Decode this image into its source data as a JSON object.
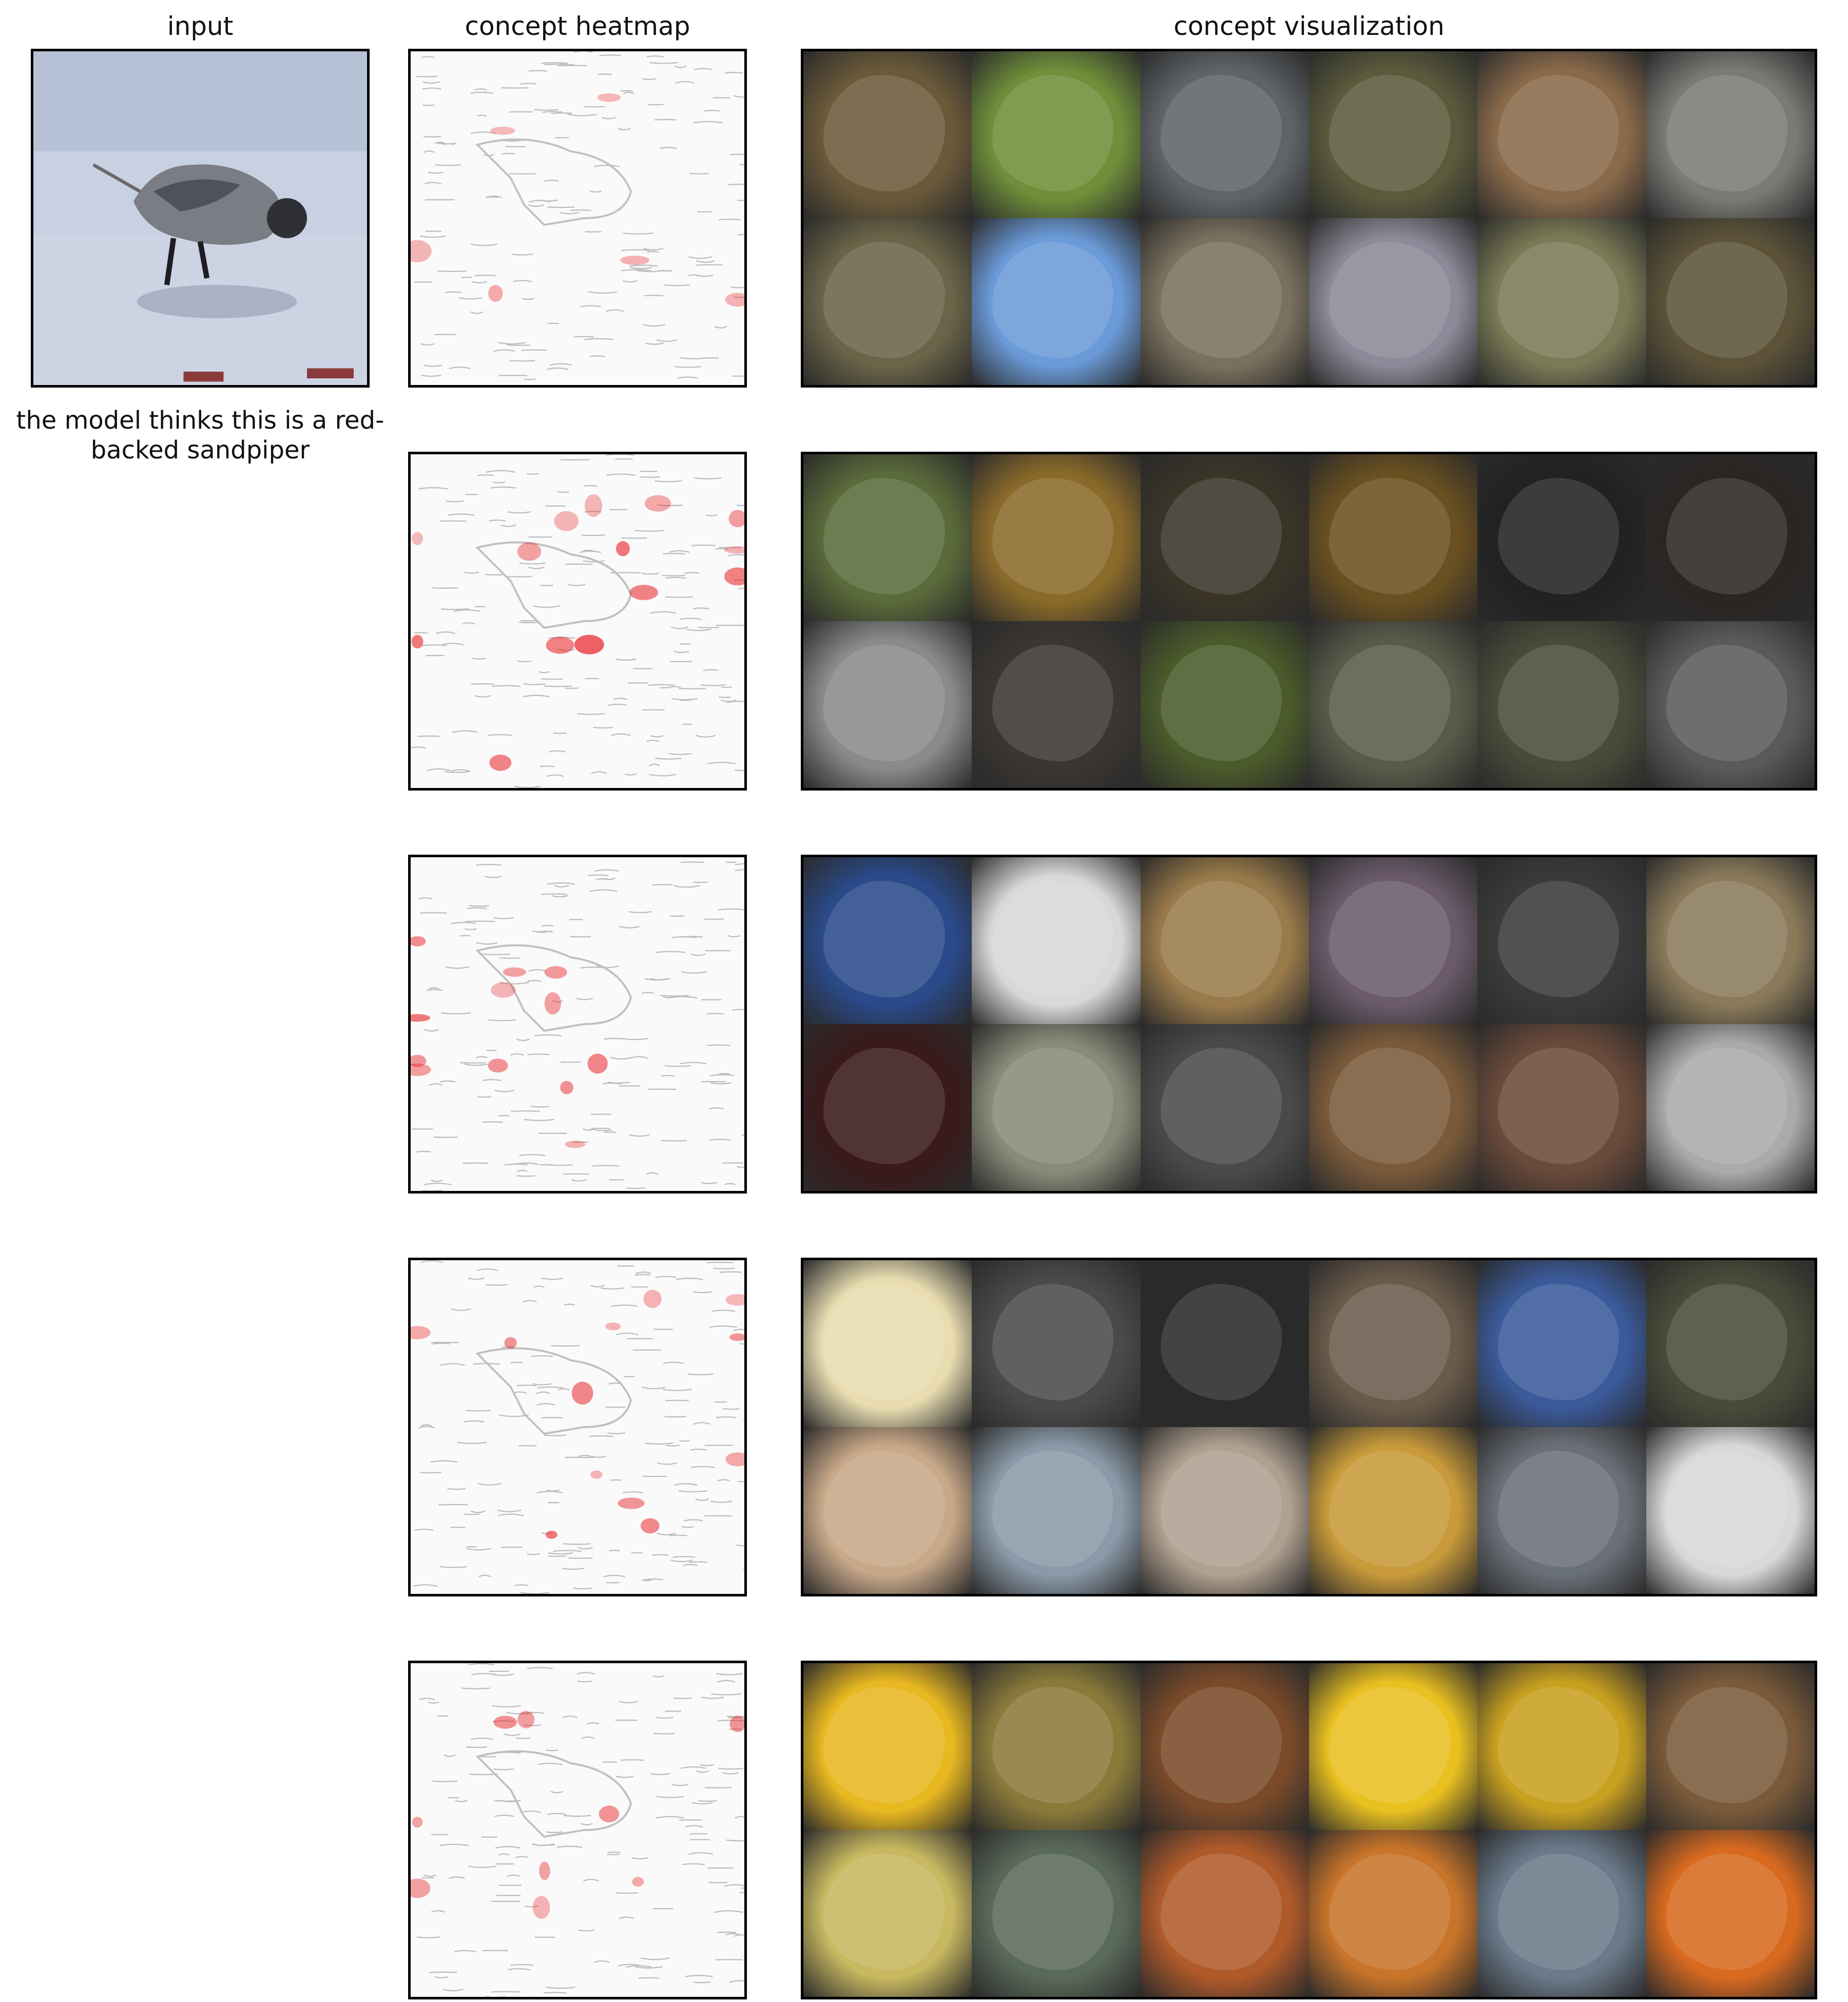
{
  "headers": {
    "input": "input",
    "heatmap": "concept heatmap",
    "visualization": "concept visualization"
  },
  "caption": "the model thinks this is a red-backed sandpiper",
  "colors": {
    "heat": "#e8262b",
    "edge": "#bdbdbd",
    "water": "#c9d3e3"
  },
  "concepts": [
    {
      "heat_intensity": 0.15,
      "tiles": [
        "#6b5a3a",
        "#6f8f3a",
        "#5f6468",
        "#5a5a3c",
        "#8a6a4a",
        "#7c7a76",
        "#6a6448",
        "#6a9ad8",
        "#7a705e",
        "#8a8a98",
        "#7a7a56",
        "#5c5238"
      ]
    },
    {
      "heat_intensity": 0.7,
      "tiles": [
        "#5a6a3a",
        "#8a6a2a",
        "#3a3428",
        "#6a5020",
        "#222222",
        "#2a2624",
        "#8a8a8a",
        "#3a3632",
        "#4a5a2a",
        "#5a5a4a",
        "#4a4a3a",
        "#5a5a5a"
      ]
    },
    {
      "heat_intensity": 0.55,
      "tiles": [
        "#2a4a8a",
        "#d8d8d8",
        "#9a7a4a",
        "#6a5a6a",
        "#3a3a3a",
        "#8a7a5a",
        "#3a1a1a",
        "#8a8a7a",
        "#4a4a4a",
        "#7a5a3a",
        "#6a4a3a",
        "#aaaaaa"
      ]
    },
    {
      "heat_intensity": 0.6,
      "tiles": [
        "#e8dcb0",
        "#4a4a4a",
        "#2a2a2a",
        "#6a5a4a",
        "#3a5a9a",
        "#4a4a3a",
        "#c8a888",
        "#8a9aa8",
        "#b0a090",
        "#c89a3a",
        "#6a7078",
        "#d8d8d8"
      ]
    },
    {
      "heat_intensity": 0.35,
      "tiles": [
        "#e8b820",
        "#8a7a3a",
        "#7a4a2a",
        "#e8c020",
        "#c8a020",
        "#7a5a3a",
        "#c8b860",
        "#5a6a5a",
        "#b05a2a",
        "#c8742a",
        "#6a7a8a",
        "#d86a20"
      ]
    }
  ]
}
